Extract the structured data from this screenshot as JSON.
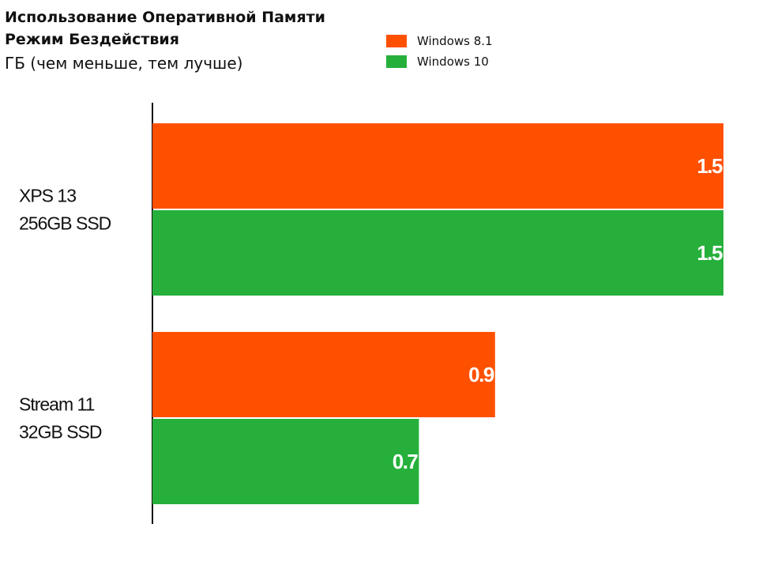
{
  "header": {
    "title_line1": "Использование Оперативной Памяти",
    "title_line2": "Режим Бездействия",
    "unit": "ГБ (чем меньше, тем лучше)"
  },
  "chart_data": {
    "type": "bar",
    "orientation": "horizontal",
    "title": "Использование Оперативной Памяти Режим Бездействия",
    "subtitle": "ГБ (чем меньше, тем лучше)",
    "categories": [
      [
        "XPS 13",
        "256GB SSD"
      ],
      [
        "Stream 11",
        "32GB SSD"
      ]
    ],
    "series": [
      {
        "name": "Windows 8.1",
        "color": "#ff5000",
        "values": [
          1.5,
          0.9
        ],
        "labels": [
          "1.5",
          "0.9"
        ]
      },
      {
        "name": "Windows 10",
        "color": "#26b03b",
        "values": [
          1.5,
          0.7
        ],
        "labels": [
          "1.5",
          "0.7"
        ]
      }
    ],
    "xlim": [
      0,
      1.5
    ],
    "grid": false,
    "legend": "top"
  }
}
